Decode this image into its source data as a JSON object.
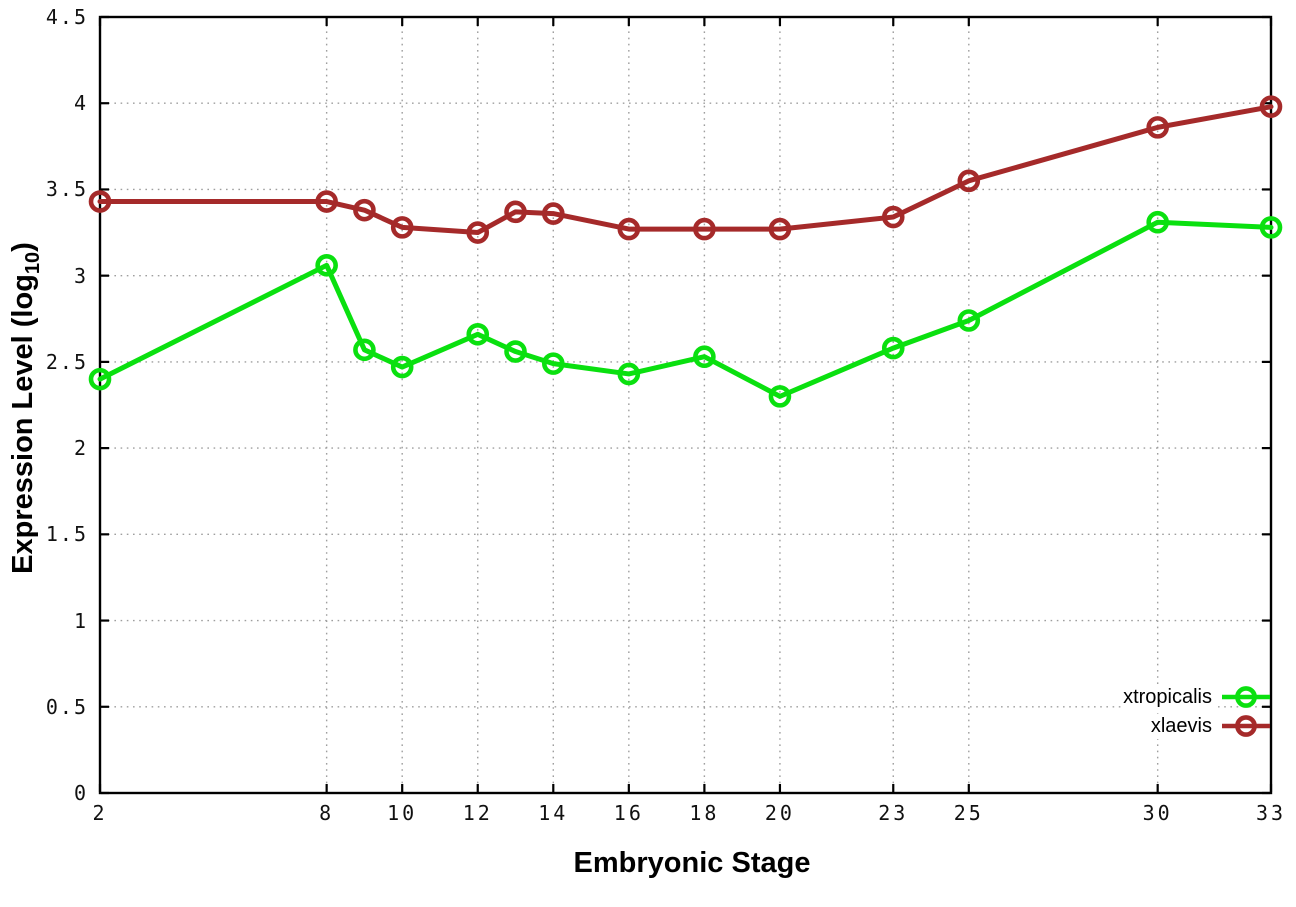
{
  "figure": {
    "background": "#ffffff",
    "border_color": "#000000",
    "grid_color": "#9e9e9e",
    "tick_label_color": "#111111"
  },
  "chart_data": {
    "type": "line",
    "title": "",
    "xlabel": "Embryonic Stage",
    "ylabel": "Expression Level (log10)",
    "ylabel_parts": {
      "main": "Expression Level (log",
      "sub": "10",
      "end": ")"
    },
    "xlim": [
      2,
      33
    ],
    "ylim": [
      0,
      4.5
    ],
    "grid": true,
    "legend_position": "inside bottom-right",
    "x_ticks": [
      2,
      8,
      10,
      12,
      14,
      16,
      18,
      20,
      23,
      25,
      30,
      33
    ],
    "x_tick_labels": [
      "2",
      "8",
      "10",
      "12",
      "14",
      "16",
      "18",
      "20",
      "23",
      "25",
      "30",
      "33"
    ],
    "y_ticks": [
      0,
      0.5,
      1,
      1.5,
      2,
      2.5,
      3,
      3.5,
      4,
      4.5
    ],
    "y_tick_labels": [
      "0",
      "0.5",
      "1",
      "1.5",
      "2",
      "2.5",
      "3",
      "3.5",
      "4",
      "4.5"
    ],
    "x": [
      2,
      8,
      9,
      10,
      12,
      13,
      14,
      16,
      18,
      20,
      23,
      25,
      30,
      33
    ],
    "series": [
      {
        "name": "xtropicalis",
        "color": "#0ae00f",
        "values": [
          2.4,
          3.06,
          2.57,
          2.47,
          2.66,
          2.56,
          2.49,
          2.43,
          2.53,
          2.3,
          2.58,
          2.74,
          3.31,
          3.28
        ]
      },
      {
        "name": "xlaevis",
        "color": "#a52a2a",
        "values": [
          3.43,
          3.43,
          3.38,
          3.28,
          3.25,
          3.37,
          3.36,
          3.27,
          3.27,
          3.27,
          3.34,
          3.55,
          3.86,
          3.98
        ]
      }
    ]
  }
}
